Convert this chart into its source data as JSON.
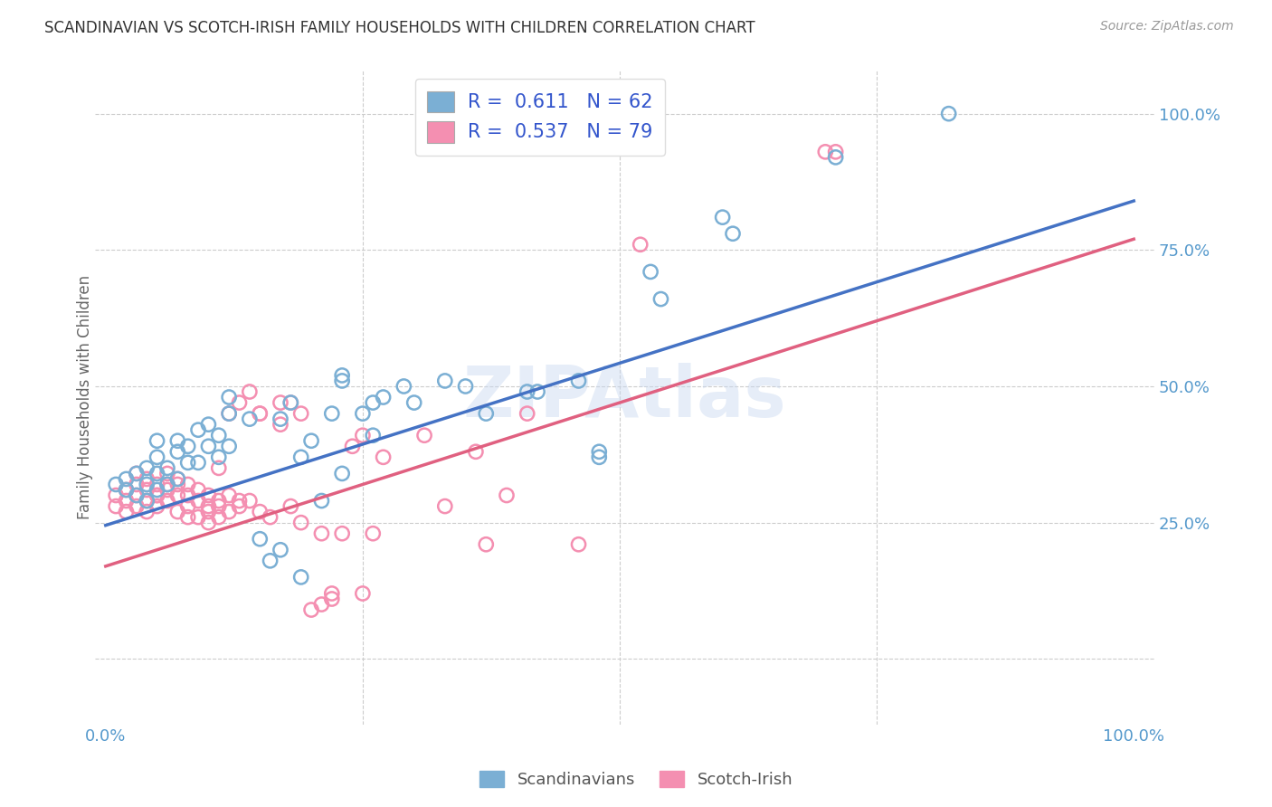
{
  "title": "SCANDINAVIAN VS SCOTCH-IRISH FAMILY HOUSEHOLDS WITH CHILDREN CORRELATION CHART",
  "source": "Source: ZipAtlas.com",
  "ylabel": "Family Households with Children",
  "xlim": [
    -0.01,
    1.02
  ],
  "ylim": [
    -0.12,
    1.08
  ],
  "xticks": [
    0.0,
    0.25,
    0.5,
    0.75,
    1.0
  ],
  "xticklabels": [
    "0.0%",
    "",
    "",
    "",
    "100.0%"
  ],
  "yticks": [
    0.25,
    0.5,
    0.75,
    1.0
  ],
  "yticklabels": [
    "25.0%",
    "50.0%",
    "75.0%",
    "100.0%"
  ],
  "watermark": "ZIPAtlas",
  "legend_label_blue": "Scandinavians",
  "legend_label_pink": "Scotch-Irish",
  "blue_color": "#7bafd4",
  "pink_color": "#f48fb1",
  "blue_line_color": "#4472c4",
  "pink_line_color": "#e06080",
  "grid_color": "#cccccc",
  "background_color": "#ffffff",
  "tick_color": "#5599cc",
  "blue_scatter": [
    [
      0.01,
      0.32
    ],
    [
      0.02,
      0.31
    ],
    [
      0.02,
      0.33
    ],
    [
      0.03,
      0.3
    ],
    [
      0.03,
      0.34
    ],
    [
      0.04,
      0.29
    ],
    [
      0.04,
      0.32
    ],
    [
      0.04,
      0.35
    ],
    [
      0.05,
      0.31
    ],
    [
      0.05,
      0.34
    ],
    [
      0.05,
      0.37
    ],
    [
      0.05,
      0.4
    ],
    [
      0.06,
      0.32
    ],
    [
      0.06,
      0.35
    ],
    [
      0.07,
      0.38
    ],
    [
      0.07,
      0.4
    ],
    [
      0.07,
      0.33
    ],
    [
      0.08,
      0.36
    ],
    [
      0.08,
      0.39
    ],
    [
      0.09,
      0.42
    ],
    [
      0.09,
      0.36
    ],
    [
      0.1,
      0.39
    ],
    [
      0.1,
      0.43
    ],
    [
      0.11,
      0.37
    ],
    [
      0.11,
      0.41
    ],
    [
      0.12,
      0.39
    ],
    [
      0.12,
      0.45
    ],
    [
      0.12,
      0.48
    ],
    [
      0.14,
      0.44
    ],
    [
      0.15,
      0.22
    ],
    [
      0.16,
      0.18
    ],
    [
      0.17,
      0.2
    ],
    [
      0.17,
      0.44
    ],
    [
      0.18,
      0.47
    ],
    [
      0.19,
      0.15
    ],
    [
      0.19,
      0.37
    ],
    [
      0.2,
      0.4
    ],
    [
      0.21,
      0.29
    ],
    [
      0.22,
      0.45
    ],
    [
      0.23,
      0.51
    ],
    [
      0.23,
      0.52
    ],
    [
      0.23,
      0.34
    ],
    [
      0.25,
      0.45
    ],
    [
      0.26,
      0.41
    ],
    [
      0.26,
      0.47
    ],
    [
      0.27,
      0.48
    ],
    [
      0.29,
      0.5
    ],
    [
      0.3,
      0.47
    ],
    [
      0.33,
      0.51
    ],
    [
      0.35,
      0.5
    ],
    [
      0.37,
      0.45
    ],
    [
      0.41,
      0.49
    ],
    [
      0.42,
      0.49
    ],
    [
      0.46,
      0.51
    ],
    [
      0.48,
      0.38
    ],
    [
      0.48,
      0.37
    ],
    [
      0.53,
      0.71
    ],
    [
      0.54,
      0.66
    ],
    [
      0.6,
      0.81
    ],
    [
      0.61,
      0.78
    ],
    [
      0.71,
      0.92
    ],
    [
      0.82,
      1.0
    ]
  ],
  "pink_scatter": [
    [
      0.01,
      0.28
    ],
    [
      0.01,
      0.3
    ],
    [
      0.02,
      0.27
    ],
    [
      0.02,
      0.29
    ],
    [
      0.02,
      0.31
    ],
    [
      0.03,
      0.28
    ],
    [
      0.03,
      0.3
    ],
    [
      0.03,
      0.32
    ],
    [
      0.03,
      0.34
    ],
    [
      0.04,
      0.29
    ],
    [
      0.04,
      0.31
    ],
    [
      0.04,
      0.33
    ],
    [
      0.04,
      0.27
    ],
    [
      0.05,
      0.3
    ],
    [
      0.05,
      0.32
    ],
    [
      0.05,
      0.28
    ],
    [
      0.05,
      0.3
    ],
    [
      0.06,
      0.32
    ],
    [
      0.06,
      0.34
    ],
    [
      0.06,
      0.29
    ],
    [
      0.06,
      0.31
    ],
    [
      0.07,
      0.33
    ],
    [
      0.07,
      0.27
    ],
    [
      0.07,
      0.3
    ],
    [
      0.07,
      0.32
    ],
    [
      0.08,
      0.28
    ],
    [
      0.08,
      0.3
    ],
    [
      0.08,
      0.32
    ],
    [
      0.08,
      0.26
    ],
    [
      0.09,
      0.29
    ],
    [
      0.09,
      0.31
    ],
    [
      0.09,
      0.26
    ],
    [
      0.1,
      0.28
    ],
    [
      0.1,
      0.3
    ],
    [
      0.1,
      0.25
    ],
    [
      0.1,
      0.27
    ],
    [
      0.11,
      0.29
    ],
    [
      0.11,
      0.26
    ],
    [
      0.11,
      0.28
    ],
    [
      0.11,
      0.35
    ],
    [
      0.12,
      0.27
    ],
    [
      0.12,
      0.3
    ],
    [
      0.12,
      0.45
    ],
    [
      0.13,
      0.29
    ],
    [
      0.13,
      0.47
    ],
    [
      0.13,
      0.28
    ],
    [
      0.14,
      0.49
    ],
    [
      0.14,
      0.29
    ],
    [
      0.15,
      0.45
    ],
    [
      0.15,
      0.27
    ],
    [
      0.15,
      0.45
    ],
    [
      0.16,
      0.26
    ],
    [
      0.17,
      0.43
    ],
    [
      0.17,
      0.47
    ],
    [
      0.18,
      0.28
    ],
    [
      0.18,
      0.47
    ],
    [
      0.19,
      0.45
    ],
    [
      0.19,
      0.25
    ],
    [
      0.2,
      0.09
    ],
    [
      0.21,
      0.1
    ],
    [
      0.21,
      0.23
    ],
    [
      0.22,
      0.11
    ],
    [
      0.22,
      0.12
    ],
    [
      0.23,
      0.23
    ],
    [
      0.24,
      0.39
    ],
    [
      0.25,
      0.12
    ],
    [
      0.25,
      0.41
    ],
    [
      0.26,
      0.23
    ],
    [
      0.27,
      0.37
    ],
    [
      0.31,
      0.41
    ],
    [
      0.33,
      0.28
    ],
    [
      0.36,
      0.38
    ],
    [
      0.37,
      0.21
    ],
    [
      0.39,
      0.3
    ],
    [
      0.41,
      0.45
    ],
    [
      0.46,
      0.21
    ],
    [
      0.52,
      0.76
    ],
    [
      0.7,
      0.93
    ],
    [
      0.71,
      0.93
    ]
  ],
  "blue_line": {
    "x0": 0.0,
    "y0": 0.245,
    "x1": 1.0,
    "y1": 0.84
  },
  "pink_line": {
    "x0": 0.0,
    "y0": 0.17,
    "x1": 1.0,
    "y1": 0.77
  }
}
